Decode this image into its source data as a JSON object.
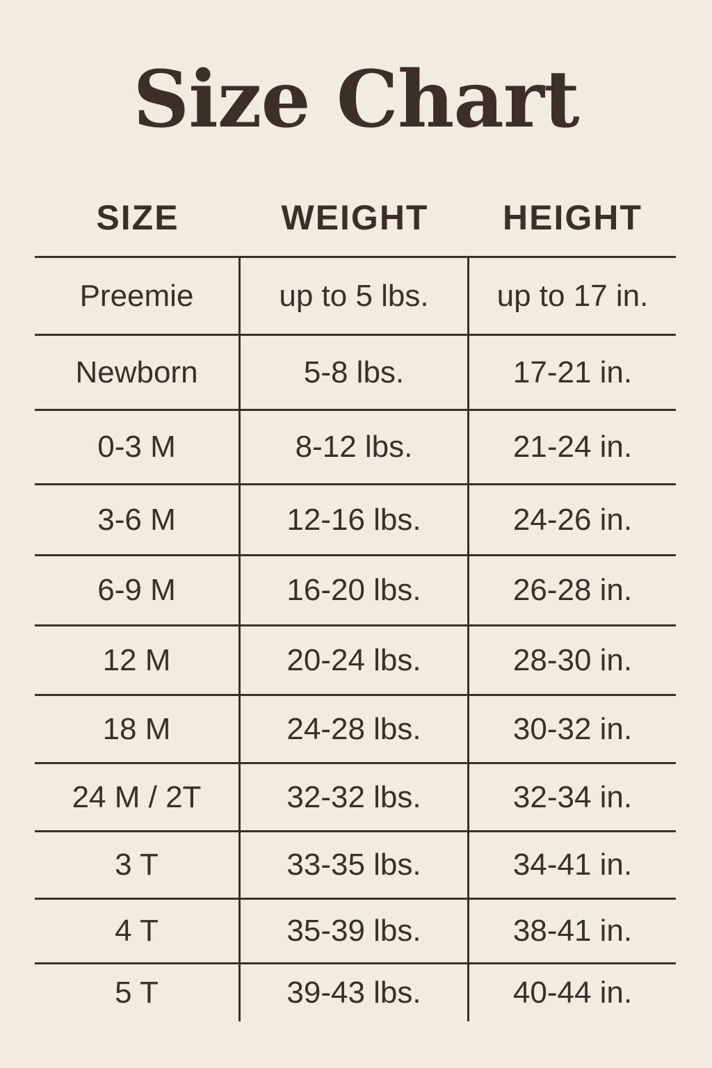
{
  "title": "Size Chart",
  "headers": [
    "SIZE",
    "WEIGHT",
    "HEIGHT"
  ],
  "rows": [
    [
      "Preemie",
      "up to 5 lbs.",
      "up to 17 in."
    ],
    [
      "Newborn",
      "5-8 lbs.",
      "17-21 in."
    ],
    [
      "0-3 M",
      "8-12 lbs.",
      "21-24 in."
    ],
    [
      "3-6 M",
      "12-16 lbs.",
      "24-26 in."
    ],
    [
      "6-9 M",
      "16-20 lbs.",
      "26-28 in."
    ],
    [
      "12 M",
      "20-24 lbs.",
      "28-30 in."
    ],
    [
      "18 M",
      "24-28 lbs.",
      "30-32 in."
    ],
    [
      "24 M / 2T",
      "32-32 lbs.",
      "32-34 in."
    ],
    [
      "3 T",
      "33-35 lbs.",
      "34-41 in."
    ],
    [
      "4 T",
      "35-39 lbs.",
      "38-41 in."
    ],
    [
      "5 T",
      "39-43 lbs.",
      "40-44 in."
    ]
  ],
  "colors": {
    "background": "#f2ebe0",
    "text": "#3b2f27"
  }
}
